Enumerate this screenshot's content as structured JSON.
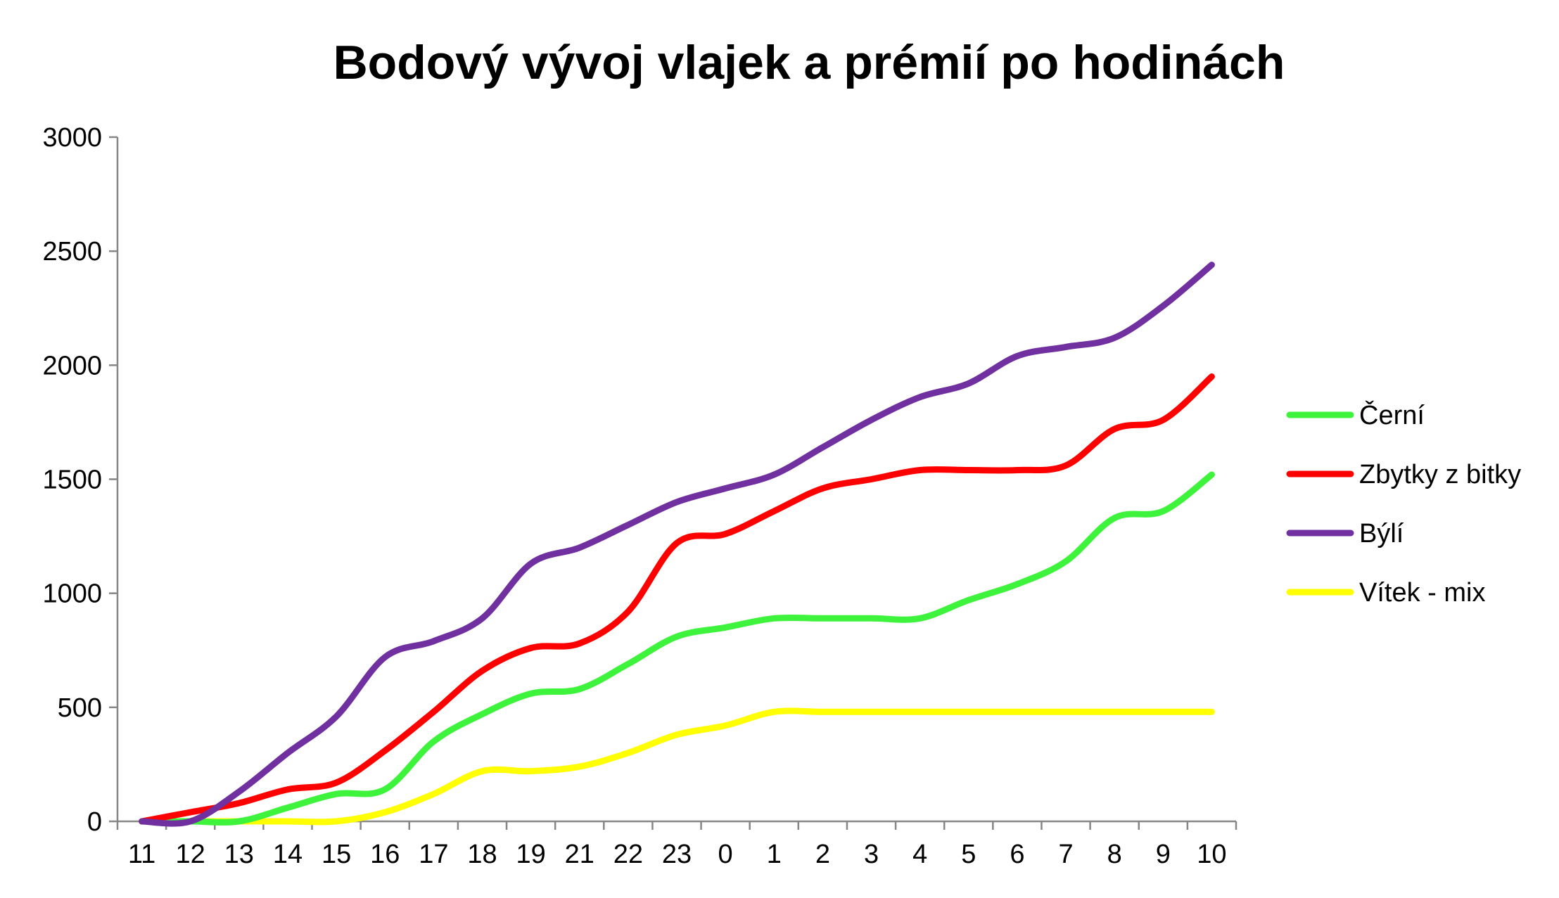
{
  "chart_data": {
    "type": "line",
    "title": "Bodový vývoj vlajek a prémií po hodinách",
    "xlabel": "",
    "ylabel": "",
    "categories": [
      "11",
      "12",
      "13",
      "14",
      "15",
      "16",
      "17",
      "18",
      "19",
      "21",
      "22",
      "23",
      "0",
      "1",
      "2",
      "3",
      "4",
      "5",
      "6",
      "7",
      "8",
      "9",
      "10"
    ],
    "ylim": [
      0,
      3000
    ],
    "yticks": [
      0,
      500,
      1000,
      1500,
      2000,
      2500,
      3000
    ],
    "grid": false,
    "legend": "right",
    "smooth": true,
    "series": [
      {
        "name": "Černí",
        "color": "#3EF33C",
        "values": [
          0,
          0,
          0,
          60,
          120,
          140,
          350,
          470,
          560,
          580,
          690,
          810,
          850,
          890,
          890,
          890,
          890,
          970,
          1040,
          1140,
          1330,
          1360,
          1520
        ]
      },
      {
        "name": "Zbytky z bitky",
        "color": "#FF0000",
        "values": [
          0,
          40,
          80,
          140,
          170,
          310,
          480,
          660,
          760,
          780,
          920,
          1220,
          1260,
          1360,
          1460,
          1500,
          1540,
          1540,
          1540,
          1560,
          1720,
          1760,
          1950
        ]
      },
      {
        "name": "Býlí",
        "color": "#7030A0",
        "values": [
          0,
          0,
          130,
          300,
          460,
          720,
          790,
          890,
          1130,
          1200,
          1300,
          1400,
          1460,
          1520,
          1640,
          1760,
          1860,
          1920,
          2040,
          2080,
          2120,
          2260,
          2440
        ]
      },
      {
        "name": "Vítek - mix",
        "color": "#FFFF00",
        "values": [
          0,
          0,
          0,
          0,
          0,
          40,
          120,
          220,
          220,
          240,
          300,
          380,
          420,
          480,
          480,
          480,
          480,
          480,
          480,
          480,
          480,
          480,
          480
        ]
      }
    ]
  }
}
